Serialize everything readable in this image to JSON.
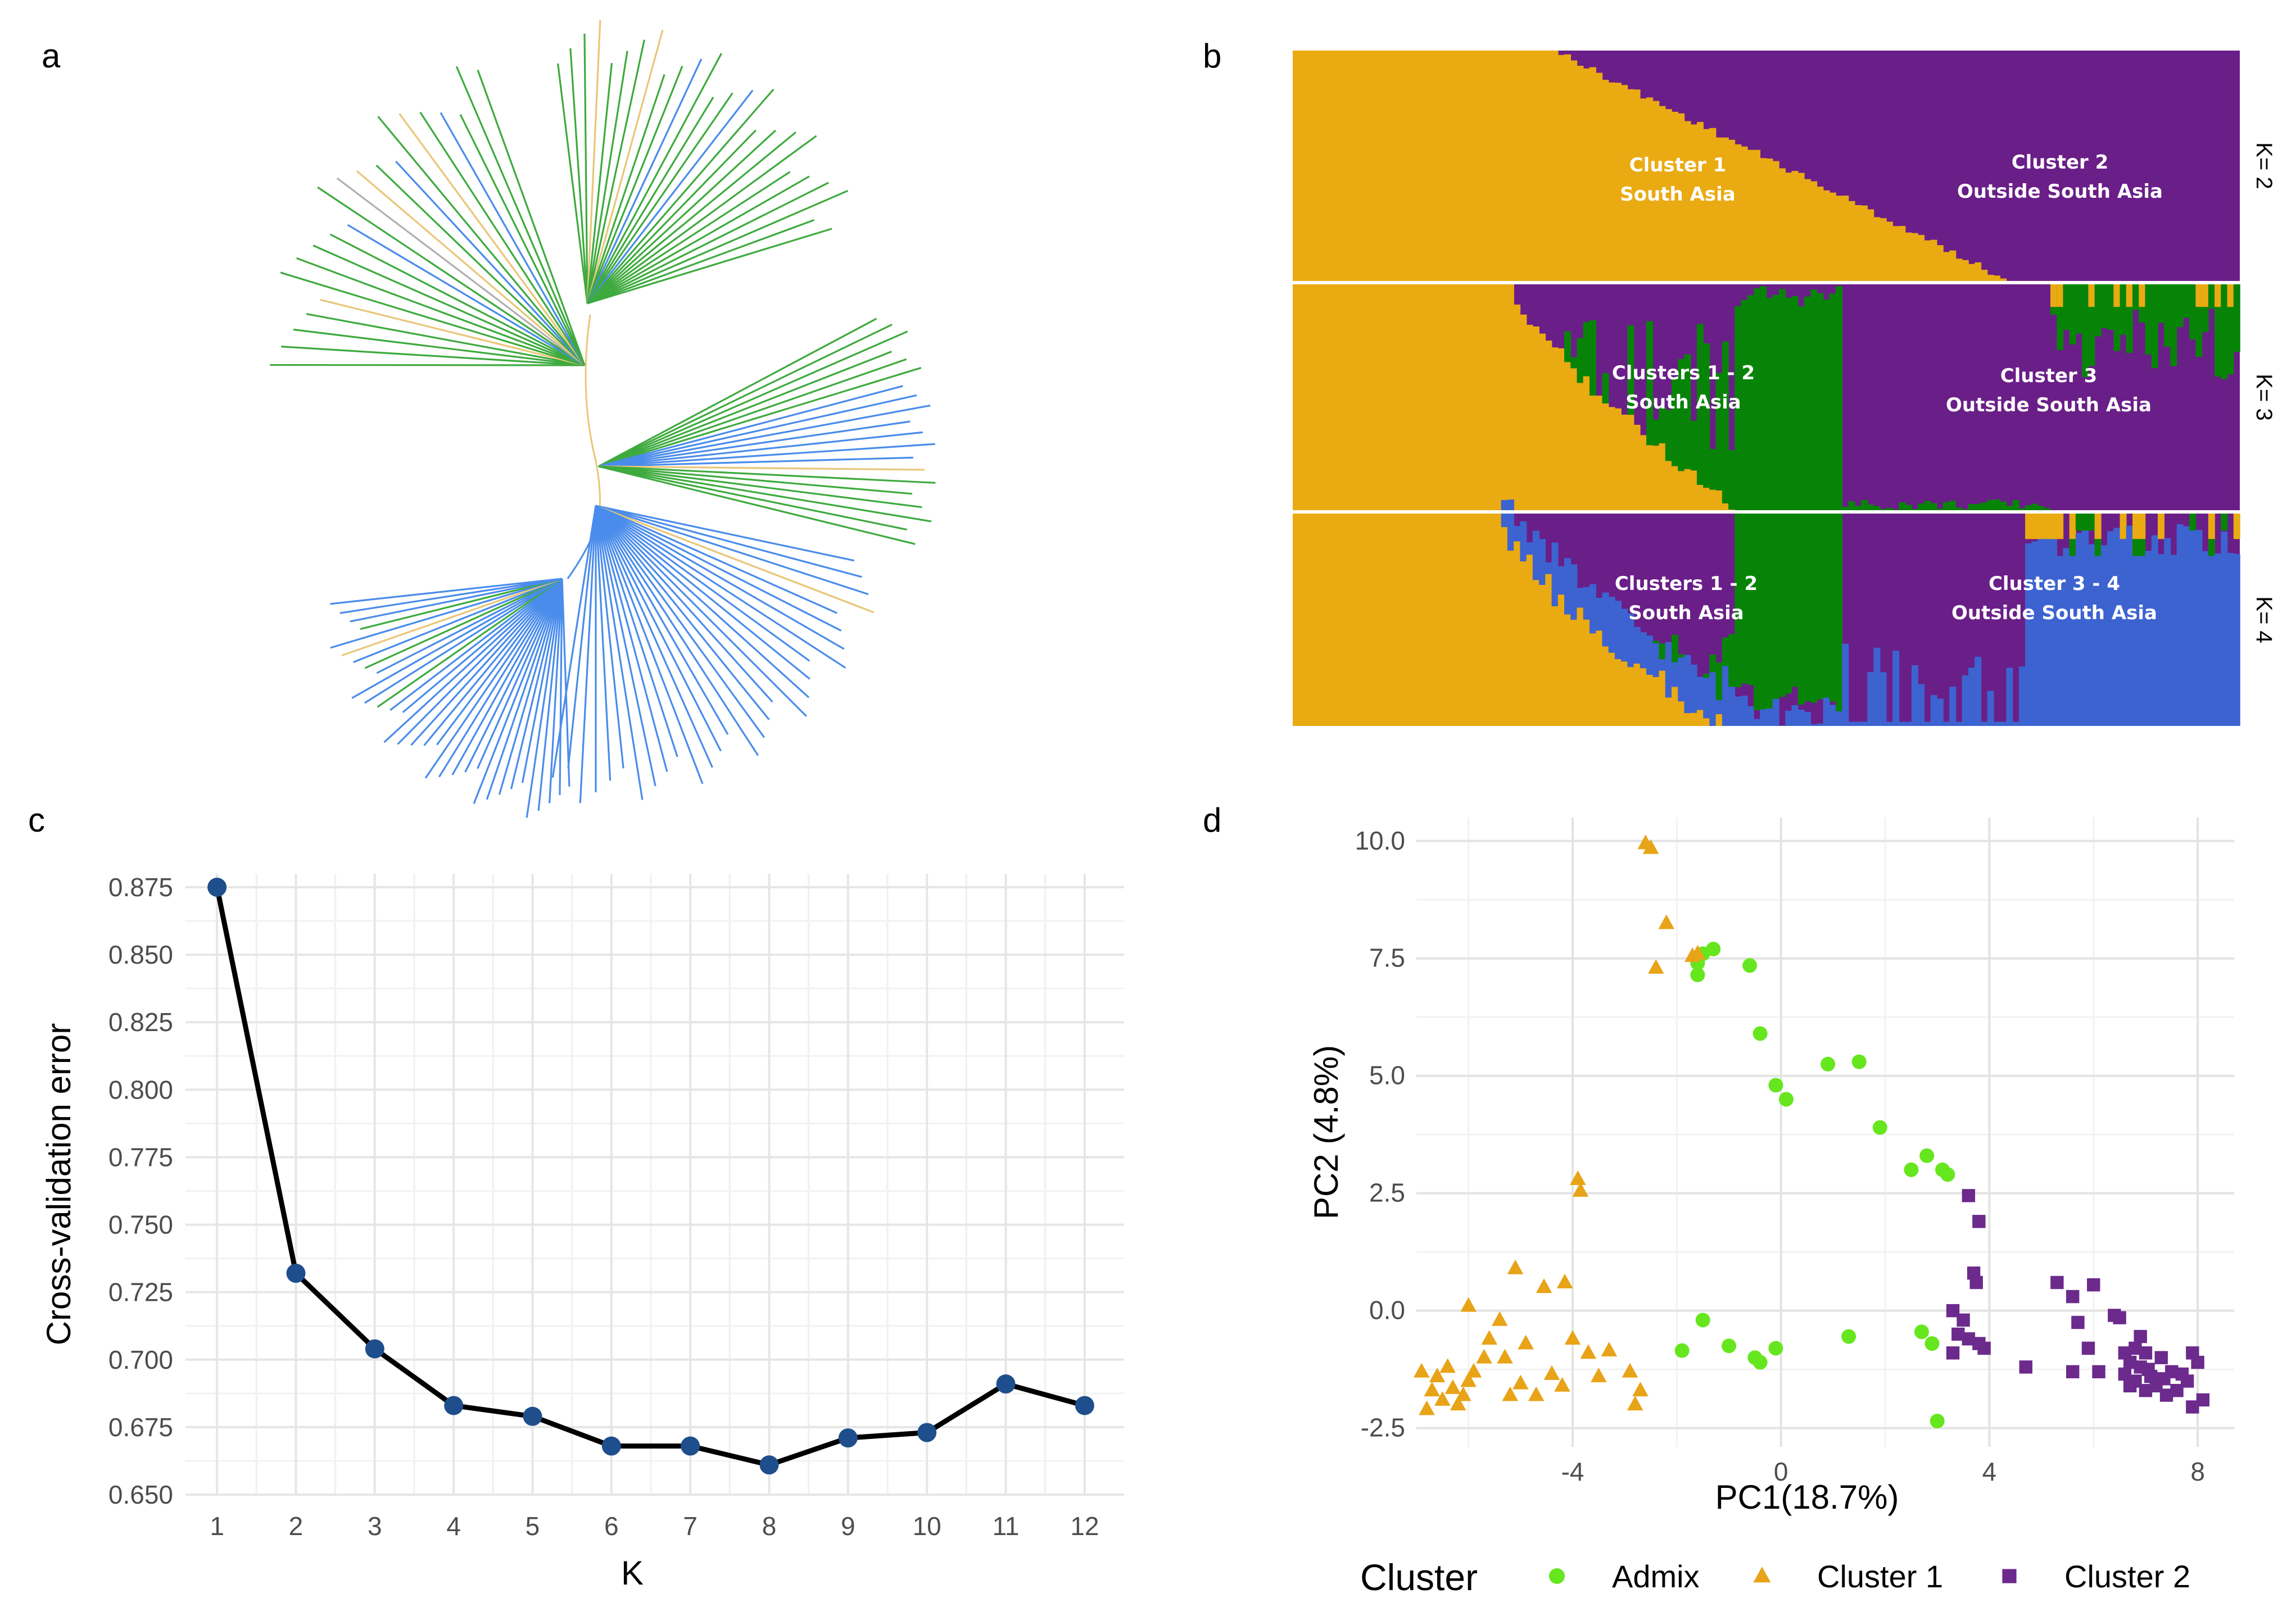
{
  "panels": {
    "a": "a",
    "b": "b",
    "c": "c",
    "d": "d"
  },
  "colors": {
    "gold": "#EAAA12",
    "purple": "#6A1E88",
    "green": "#078407",
    "blue": "#3D63D1",
    "tree_green": "#3EAA3E",
    "tree_blue": "#4A8CEB",
    "tree_gold": "#E9C67A",
    "tree_gray": "#B0B0B0",
    "line_black": "#000000",
    "point_navy": "#1F4E8C",
    "admix_green": "#66E61E",
    "cluster1_gold": "#E8A317",
    "cluster2_purple": "#6B2A8C"
  },
  "chart_data": [
    {
      "id": "a",
      "type": "dendrogram",
      "title": "",
      "clades": [
        {
          "name": "upper green clade",
          "color": "green"
        },
        {
          "name": "right green/blue clade",
          "color": "green"
        },
        {
          "name": "lower blue clade",
          "color": "blue"
        }
      ]
    },
    {
      "id": "b",
      "type": "stacked-bar",
      "title": "",
      "rows": [
        {
          "k_label": "K= 2",
          "components": [
            "gold",
            "purple"
          ],
          "labels": [
            {
              "line1": "Cluster 1",
              "line2": "South Asia"
            },
            {
              "line1": "Cluster 2",
              "line2": "Outside South Asia"
            }
          ]
        },
        {
          "k_label": "K= 3",
          "components": [
            "gold",
            "green",
            "purple"
          ],
          "labels": [
            {
              "line1": "Clusters 1 - 2",
              "line2": "South Asia"
            },
            {
              "line1": "Cluster  3",
              "line2": "Outside South Asia"
            }
          ]
        },
        {
          "k_label": "K= 4",
          "components": [
            "gold",
            "green",
            "purple",
            "blue"
          ],
          "labels": [
            {
              "line1": "Clusters 1 - 2",
              "line2": "South Asia"
            },
            {
              "line1": "Cluster  3 - 4",
              "line2": "Outside South Asia"
            }
          ]
        }
      ]
    },
    {
      "id": "c",
      "type": "line",
      "title": "",
      "xlabel": "K",
      "ylabel": "Cross-validation error",
      "x": [
        1,
        2,
        3,
        4,
        5,
        6,
        7,
        8,
        9,
        10,
        11,
        12
      ],
      "y": [
        0.875,
        0.732,
        0.704,
        0.683,
        0.679,
        0.668,
        0.668,
        0.661,
        0.671,
        0.673,
        0.691,
        0.683
      ],
      "ylim": [
        0.65,
        0.88
      ],
      "xticks": [
        "1",
        "2",
        "3",
        "4",
        "5",
        "6",
        "7",
        "8",
        "9",
        "10",
        "11",
        "12"
      ],
      "yticks": [
        "0.650",
        "0.675",
        "0.700",
        "0.725",
        "0.750",
        "0.775",
        "0.800",
        "0.825",
        "0.850",
        "0.875"
      ]
    },
    {
      "id": "d",
      "type": "scatter",
      "title": "",
      "xlabel": "PC1(18.7%)",
      "ylabel": "PC2 (4.8%)",
      "xlim": [
        -7,
        8.7
      ],
      "ylim": [
        -2.9,
        10.5
      ],
      "xticks": [
        "-4",
        "0",
        "4",
        "8"
      ],
      "yticks": [
        "-2.5",
        "0.0",
        "2.5",
        "5.0",
        "7.5",
        "10.0"
      ],
      "legend_title": "Cluster",
      "legend_position": "bottom",
      "series": [
        {
          "name": "Admix",
          "shape": "circle",
          "points": [
            [
              -1.5,
              7.6
            ],
            [
              -1.3,
              7.7
            ],
            [
              -1.6,
              7.4
            ],
            [
              -1.6,
              7.15
            ],
            [
              -0.6,
              7.35
            ],
            [
              -0.4,
              5.9
            ],
            [
              0.9,
              5.25
            ],
            [
              1.5,
              5.3
            ],
            [
              -0.1,
              4.8
            ],
            [
              0.1,
              4.5
            ],
            [
              1.9,
              3.9
            ],
            [
              2.5,
              3.0
            ],
            [
              2.8,
              3.3
            ],
            [
              3.1,
              3.0
            ],
            [
              3.2,
              2.9
            ],
            [
              -1.5,
              -0.2
            ],
            [
              -1.9,
              -0.85
            ],
            [
              -1.0,
              -0.75
            ],
            [
              -0.5,
              -1.0
            ],
            [
              -0.4,
              -1.1
            ],
            [
              -0.1,
              -0.8
            ],
            [
              1.3,
              -0.55
            ],
            [
              2.7,
              -0.45
            ],
            [
              2.9,
              -0.7
            ],
            [
              3.0,
              -2.35
            ]
          ]
        },
        {
          "name": "Cluster 1",
          "shape": "triangle",
          "points": [
            [
              -2.6,
              9.95
            ],
            [
              -2.5,
              9.85
            ],
            [
              -2.2,
              8.25
            ],
            [
              -1.7,
              7.55
            ],
            [
              -1.6,
              7.6
            ],
            [
              -2.4,
              7.3
            ],
            [
              -3.9,
              2.8
            ],
            [
              -3.85,
              2.55
            ],
            [
              -5.1,
              0.9
            ],
            [
              -4.15,
              0.6
            ],
            [
              -4.55,
              0.5
            ],
            [
              -6.0,
              0.1
            ],
            [
              -5.4,
              -0.2
            ],
            [
              -4.9,
              -0.7
            ],
            [
              -4.0,
              -0.6
            ],
            [
              -3.7,
              -0.9
            ],
            [
              -3.3,
              -0.85
            ],
            [
              -3.5,
              -1.4
            ],
            [
              -2.9,
              -1.3
            ],
            [
              -2.7,
              -1.7
            ],
            [
              -2.8,
              -2.0
            ],
            [
              -4.4,
              -1.35
            ],
            [
              -4.2,
              -1.6
            ],
            [
              -5.0,
              -1.55
            ],
            [
              -5.2,
              -1.8
            ],
            [
              -5.7,
              -1.0
            ],
            [
              -5.9,
              -1.3
            ],
            [
              -6.0,
              -1.5
            ],
            [
              -6.1,
              -1.8
            ],
            [
              -6.2,
              -2.0
            ],
            [
              -6.3,
              -1.65
            ],
            [
              -6.4,
              -1.2
            ],
            [
              -6.5,
              -1.9
            ],
            [
              -6.6,
              -1.4
            ],
            [
              -6.7,
              -1.7
            ],
            [
              -6.8,
              -2.1
            ],
            [
              -6.9,
              -1.3
            ],
            [
              -5.6,
              -0.6
            ],
            [
              -5.3,
              -1.0
            ],
            [
              -4.7,
              -1.8
            ]
          ]
        },
        {
          "name": "Cluster 2",
          "shape": "square",
          "points": [
            [
              3.6,
              2.45
            ],
            [
              3.8,
              1.9
            ],
            [
              3.7,
              0.8
            ],
            [
              3.75,
              0.6
            ],
            [
              3.3,
              0.0
            ],
            [
              3.5,
              -0.2
            ],
            [
              3.6,
              -0.6
            ],
            [
              3.8,
              -0.7
            ],
            [
              3.9,
              -0.8
            ],
            [
              3.4,
              -0.5
            ],
            [
              3.3,
              -0.9
            ],
            [
              4.7,
              -1.2
            ],
            [
              5.3,
              0.6
            ],
            [
              5.6,
              0.3
            ],
            [
              6.0,
              0.55
            ],
            [
              5.7,
              -0.25
            ],
            [
              6.4,
              -0.1
            ],
            [
              6.5,
              -0.15
            ],
            [
              5.9,
              -0.8
            ],
            [
              6.1,
              -1.3
            ],
            [
              5.6,
              -1.3
            ],
            [
              6.6,
              -0.9
            ],
            [
              6.7,
              -1.1
            ],
            [
              6.8,
              -0.8
            ],
            [
              6.9,
              -1.2
            ],
            [
              7.0,
              -0.9
            ],
            [
              7.1,
              -1.4
            ],
            [
              7.2,
              -1.6
            ],
            [
              7.3,
              -1.0
            ],
            [
              7.5,
              -1.3
            ],
            [
              7.6,
              -1.7
            ],
            [
              7.8,
              -1.5
            ],
            [
              7.9,
              -0.9
            ],
            [
              8.0,
              -1.1
            ],
            [
              8.1,
              -1.9
            ],
            [
              7.9,
              -2.05
            ],
            [
              7.4,
              -1.8
            ],
            [
              7.0,
              -1.7
            ],
            [
              6.8,
              -1.5
            ],
            [
              6.6,
              -1.35
            ],
            [
              6.7,
              -1.6
            ],
            [
              7.05,
              -1.25
            ],
            [
              7.35,
              -1.45
            ],
            [
              7.7,
              -1.35
            ],
            [
              6.9,
              -0.55
            ]
          ]
        }
      ]
    }
  ]
}
